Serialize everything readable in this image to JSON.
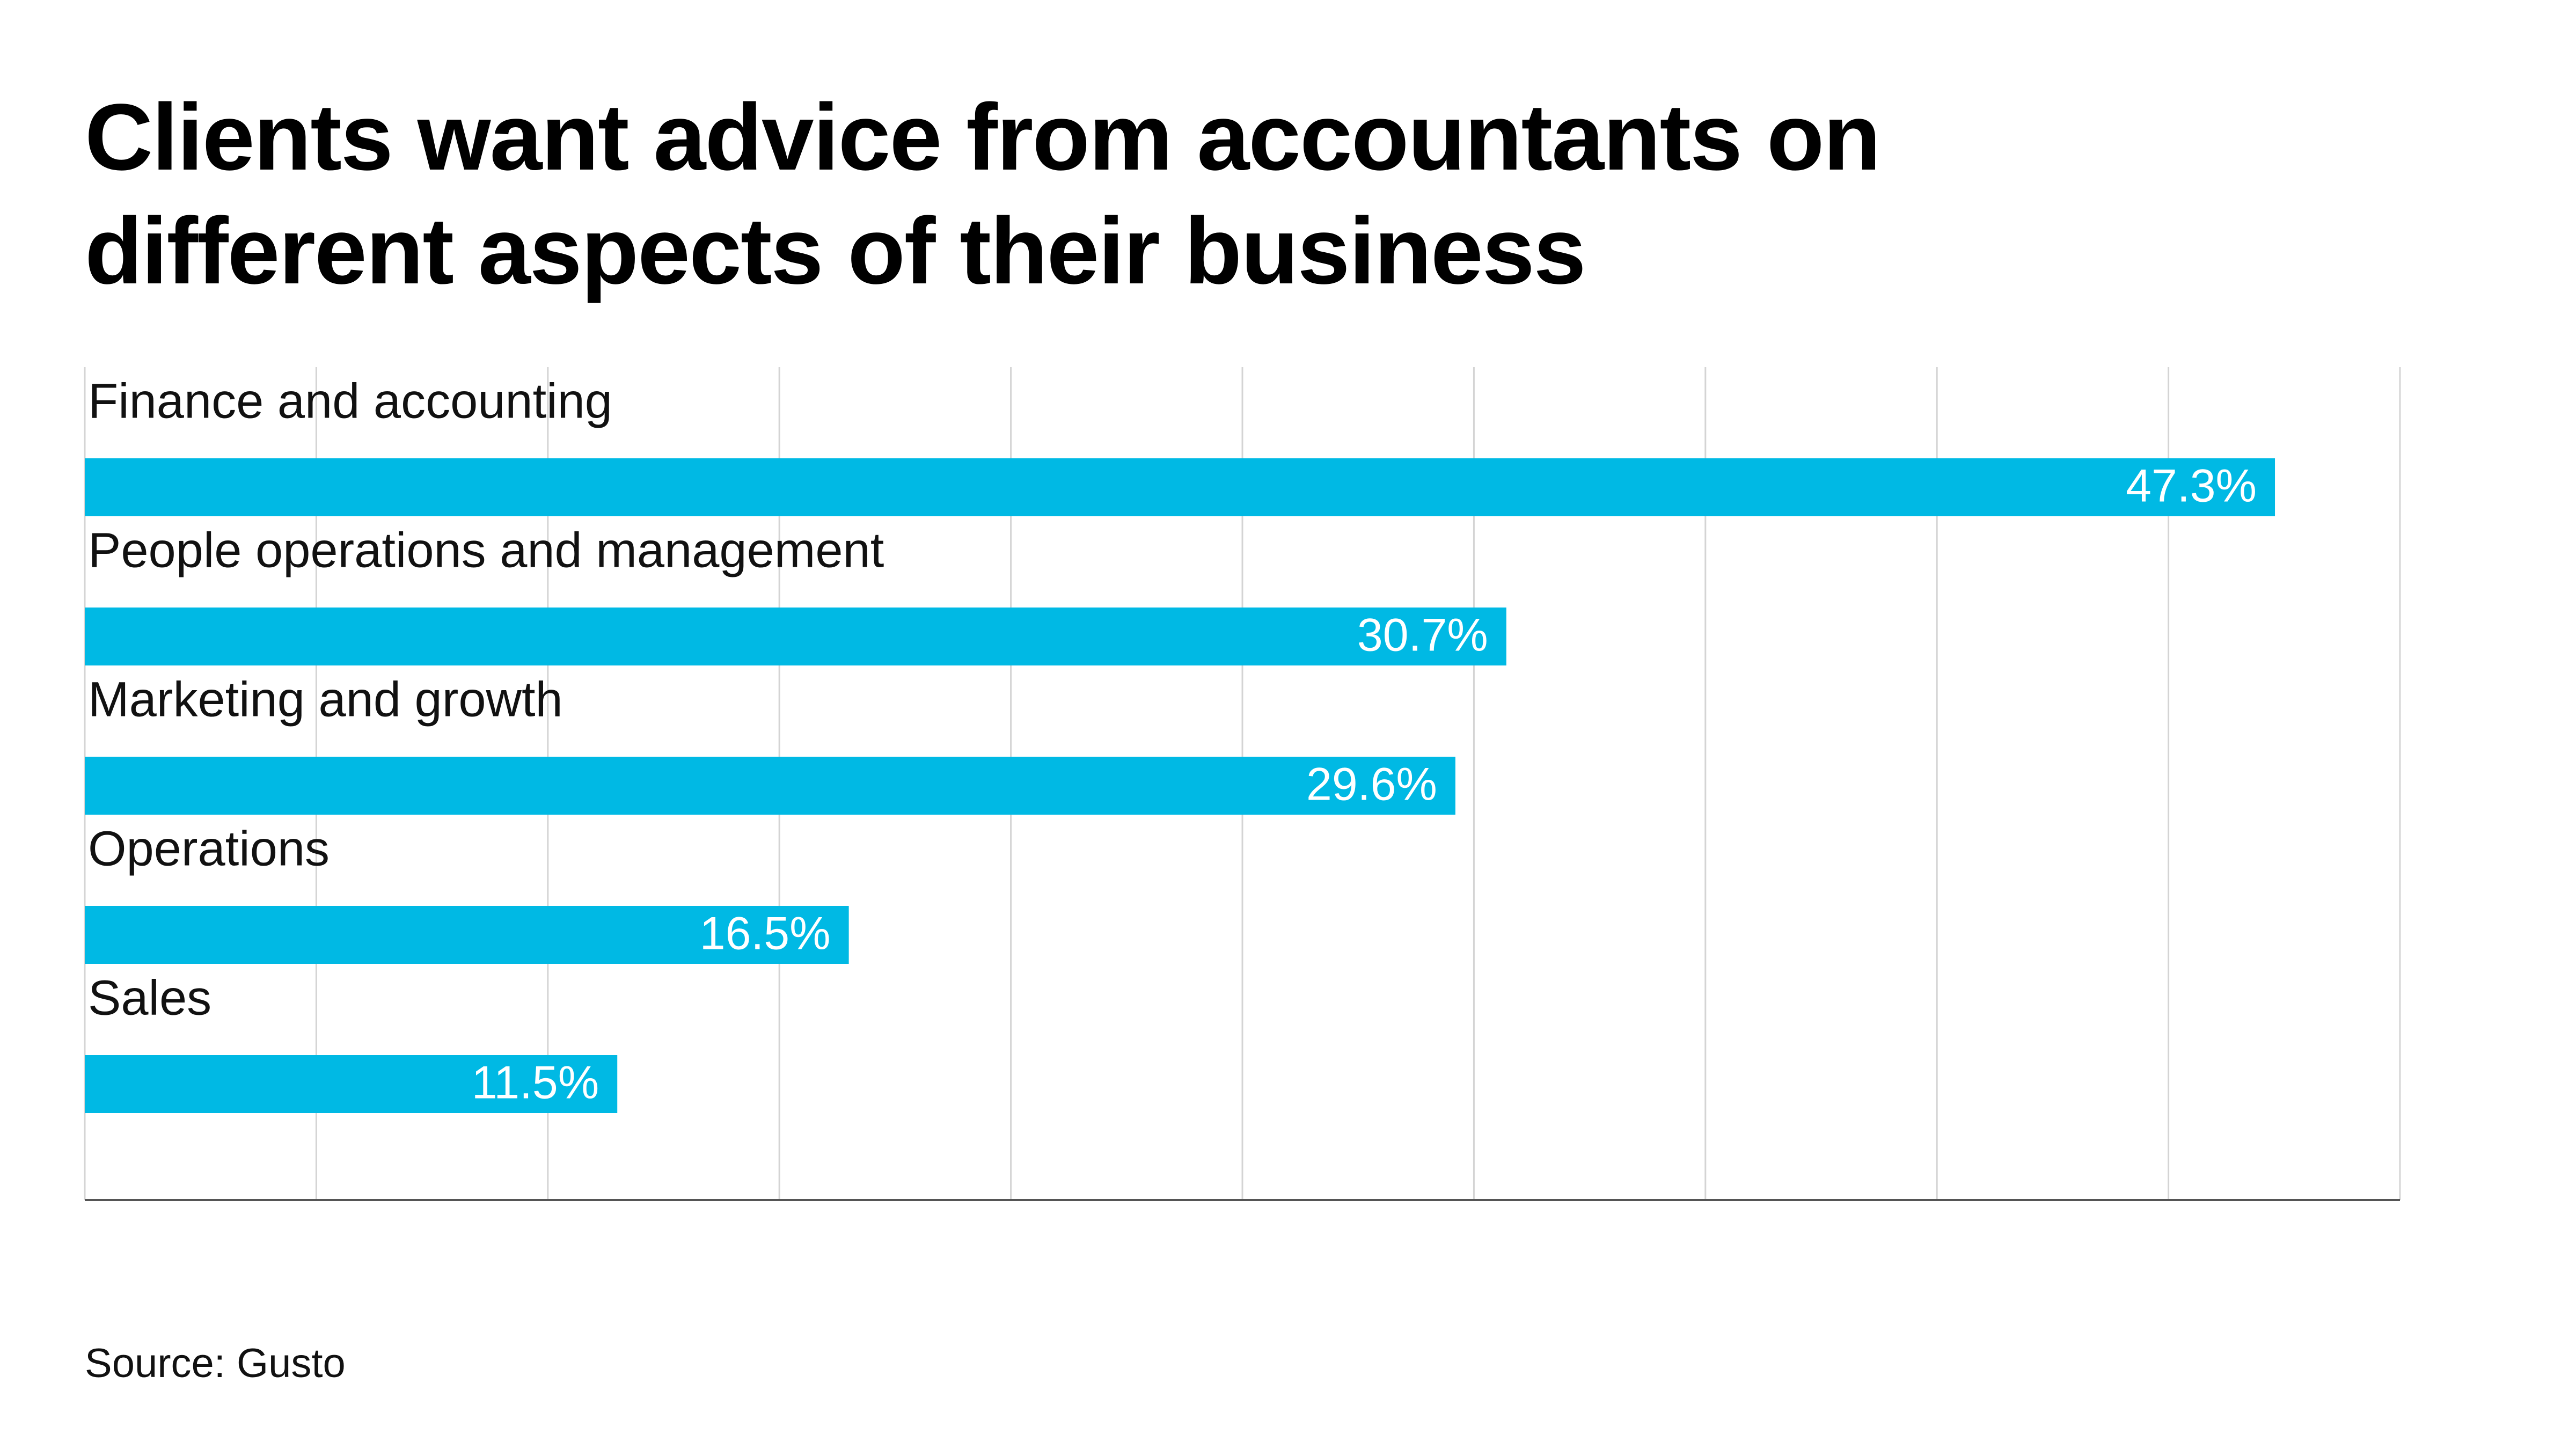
{
  "chart_data": {
    "type": "bar",
    "orientation": "horizontal",
    "title": "Clients want advice from accountants on different aspects of their business",
    "categories": [
      "Finance and accounting",
      "People operations and management",
      "Marketing and growth",
      "Operations",
      "Sales"
    ],
    "values": [
      47.3,
      30.7,
      29.6,
      16.5,
      11.5
    ],
    "value_labels": [
      "47.3%",
      "30.7%",
      "29.6%",
      "16.5%",
      "11.5%"
    ],
    "color": "#00b9e4",
    "xlim": [
      0,
      50
    ],
    "xticks": [
      0,
      5,
      10,
      15,
      20,
      25,
      30,
      35,
      40,
      45,
      50
    ],
    "grid": true,
    "source": "Source: Gusto"
  }
}
